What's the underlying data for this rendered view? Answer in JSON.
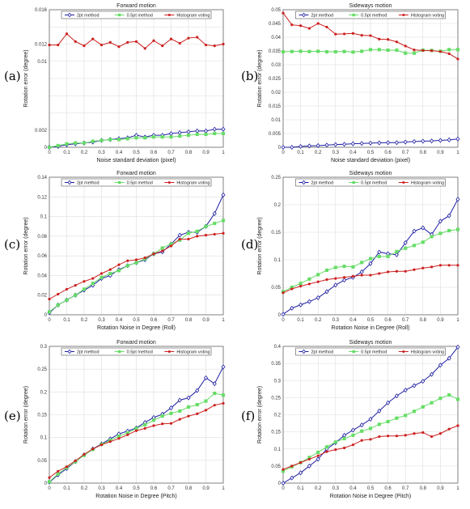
{
  "colors": {
    "s2pt": "#1f1fa3",
    "s05pt": "#66dd66",
    "hist": "#cc2020",
    "grid": "#dddddd"
  },
  "chart_data": [
    {
      "panel_label": "(a)",
      "type": "line",
      "title": "Forward motion",
      "xlabel": "Noise standard deviation (pixel)",
      "ylabel": "Rotation error (degree)",
      "xlim": [
        0,
        1
      ],
      "ylim": [
        0,
        0.016
      ],
      "xticks": [
        "0",
        "0.1",
        "0.2",
        "0.3",
        "0.4",
        "0.5",
        "0.6",
        "0.7",
        "0.8",
        "0.9",
        "1"
      ],
      "yticks": [
        "0",
        "0.002",
        "0.004",
        "0.006",
        "0.008",
        "0.01",
        "0.012",
        "0.014",
        "0.016"
      ],
      "yticks_shown": [
        "0",
        "0.002",
        "",
        "",
        "",
        "0.01",
        "0.012",
        "",
        "0.016"
      ],
      "x": [
        0,
        0.05,
        0.1,
        0.15,
        0.2,
        0.25,
        0.3,
        0.35,
        0.4,
        0.45,
        0.5,
        0.55,
        0.6,
        0.65,
        0.7,
        0.75,
        0.8,
        0.85,
        0.9,
        0.95,
        1
      ],
      "series": [
        {
          "name": "2pt method",
          "key": "s2pt",
          "marker": "diamond",
          "values": [
            0,
            0.0001,
            0.0003,
            0.0004,
            0.0005,
            0.0006,
            0.0008,
            0.0009,
            0.001,
            0.0011,
            0.0014,
            0.0012,
            0.0014,
            0.0014,
            0.0016,
            0.0017,
            0.0018,
            0.0019,
            0.0019,
            0.0021,
            0.0021
          ]
        },
        {
          "name": "0.5pt method",
          "key": "s05pt",
          "marker": "square",
          "values": [
            0,
            0.0002,
            0.0004,
            0.0005,
            0.0005,
            0.0007,
            0.0008,
            0.0009,
            0.0009,
            0.001,
            0.0011,
            0.0011,
            0.0012,
            0.0012,
            0.0012,
            0.0013,
            0.0014,
            0.0015,
            0.0015,
            0.0016,
            0.0016
          ]
        },
        {
          "name": "Histogram voting",
          "key": "hist",
          "marker": "dot",
          "values": [
            0.0119,
            0.0119,
            0.0132,
            0.0123,
            0.0118,
            0.0126,
            0.0119,
            0.0122,
            0.0117,
            0.0122,
            0.0123,
            0.0115,
            0.0124,
            0.0118,
            0.0126,
            0.0121,
            0.0127,
            0.0128,
            0.0119,
            0.0118,
            0.012
          ]
        }
      ]
    },
    {
      "panel_label": "(b)",
      "type": "line",
      "title": "Sideways motion",
      "xlabel": "Noise standard deviation (pixel)",
      "ylabel": "Rotation error (degree)",
      "xlim": [
        0,
        1
      ],
      "ylim": [
        0,
        0.05
      ],
      "xticks": [
        "0",
        "0.1",
        "0.2",
        "0.3",
        "0.4",
        "0.5",
        "0.6",
        "0.7",
        "0.8",
        "0.9",
        "1"
      ],
      "yticks": [
        "0",
        "0.005",
        "0.01",
        "0.015",
        "0.02",
        "0.025",
        "0.03",
        "0.035",
        "0.04",
        "0.045",
        "0.05"
      ],
      "yticks_shown": [
        "0",
        "0.005",
        "0.01",
        "0.015",
        "0.02",
        "0.025",
        "0.03",
        "0.035",
        "0.04",
        "0.045",
        "0.05"
      ],
      "x": [
        0,
        0.05,
        0.1,
        0.15,
        0.2,
        0.25,
        0.3,
        0.35,
        0.4,
        0.45,
        0.5,
        0.55,
        0.6,
        0.65,
        0.7,
        0.75,
        0.8,
        0.85,
        0.9,
        0.95,
        1
      ],
      "series": [
        {
          "name": "2pt method",
          "key": "s2pt",
          "marker": "diamond",
          "values": [
            0,
            0,
            0.0003,
            0.0005,
            0.0006,
            0.0008,
            0.001,
            0.0011,
            0.0013,
            0.0014,
            0.0015,
            0.0016,
            0.0017,
            0.0017,
            0.0019,
            0.0021,
            0.0022,
            0.0023,
            0.0025,
            0.0027,
            0.003
          ]
        },
        {
          "name": "0.5pt method",
          "key": "s05pt",
          "marker": "square",
          "values": [
            0.0347,
            0.0348,
            0.0349,
            0.0348,
            0.0349,
            0.0347,
            0.0347,
            0.0348,
            0.0346,
            0.0349,
            0.0355,
            0.0355,
            0.0353,
            0.0353,
            0.0342,
            0.0342,
            0.0353,
            0.0352,
            0.0349,
            0.0355,
            0.0355
          ]
        },
        {
          "name": "Histogram voting",
          "key": "hist",
          "marker": "dot",
          "values": [
            0.0488,
            0.0445,
            0.0442,
            0.0432,
            0.045,
            0.0437,
            0.0411,
            0.0412,
            0.0414,
            0.0407,
            0.0406,
            0.0393,
            0.0392,
            0.0383,
            0.0368,
            0.0354,
            0.0352,
            0.0351,
            0.0348,
            0.034,
            0.0321
          ]
        }
      ]
    },
    {
      "panel_label": "(c)",
      "type": "line",
      "title": "Forward motion",
      "xlabel": "Rotation Noise in Degree (Roll)",
      "ylabel": "Rotation error (degree)",
      "xlim": [
        0,
        1
      ],
      "ylim": [
        0,
        0.14
      ],
      "xticks": [
        "0",
        "0.1",
        "0.2",
        "0.3",
        "0.4",
        "0.5",
        "0.6",
        "0.7",
        "0.8",
        "0.9",
        "1"
      ],
      "yticks": [
        "0",
        "0.02",
        "0.04",
        "0.06",
        "0.08",
        "0.1",
        "0.12",
        "0.14"
      ],
      "yticks_shown": [
        "0",
        "0.02",
        "0.04",
        "0.06",
        "0.08",
        "0.1",
        "0.12",
        "0.14"
      ],
      "x": [
        0,
        0.05,
        0.1,
        0.15,
        0.2,
        0.25,
        0.3,
        0.35,
        0.4,
        0.45,
        0.5,
        0.55,
        0.6,
        0.65,
        0.7,
        0.75,
        0.8,
        0.85,
        0.9,
        0.95,
        1
      ],
      "series": [
        {
          "name": "2pt method",
          "key": "s2pt",
          "marker": "diamond",
          "values": [
            0.002,
            0.01,
            0.015,
            0.02,
            0.025,
            0.03,
            0.037,
            0.04,
            0.046,
            0.05,
            0.053,
            0.056,
            0.062,
            0.064,
            0.072,
            0.081,
            0.084,
            0.084,
            0.09,
            0.103,
            0.122
          ]
        },
        {
          "name": "0.5pt method",
          "key": "s05pt",
          "marker": "square",
          "values": [
            0.003,
            0.01,
            0.015,
            0.02,
            0.026,
            0.032,
            0.038,
            0.042,
            0.045,
            0.05,
            0.053,
            0.057,
            0.062,
            0.068,
            0.072,
            0.076,
            0.083,
            0.085,
            0.09,
            0.093,
            0.096
          ]
        },
        {
          "name": "Histogram voting",
          "key": "hist",
          "marker": "dot",
          "values": [
            0.016,
            0.021,
            0.026,
            0.03,
            0.034,
            0.037,
            0.042,
            0.046,
            0.051,
            0.055,
            0.056,
            0.058,
            0.062,
            0.065,
            0.07,
            0.077,
            0.077,
            0.08,
            0.081,
            0.082,
            0.083
          ]
        }
      ]
    },
    {
      "panel_label": "(d)",
      "type": "line",
      "title": "Sideways motion",
      "xlabel": "Rotation Noise in Degree (Roll)",
      "ylabel": "Rotation error (degree)",
      "xlim": [
        0,
        1
      ],
      "ylim": [
        0,
        0.25
      ],
      "xticks": [
        "0",
        "0.1",
        "0.2",
        "0.3",
        "0.4",
        "0.5",
        "0.6",
        "0.7",
        "0.8",
        "0.9",
        "1"
      ],
      "yticks": [
        "0",
        "0.05",
        "0.1",
        "0.15",
        "0.2",
        "0.25"
      ],
      "yticks_shown": [
        "0",
        "0.05",
        "0.1",
        "0.15",
        "0.2",
        "0.25"
      ],
      "x": [
        0,
        0.05,
        0.1,
        0.15,
        0.2,
        0.25,
        0.3,
        0.35,
        0.4,
        0.45,
        0.5,
        0.55,
        0.6,
        0.65,
        0.7,
        0.75,
        0.8,
        0.85,
        0.9,
        0.95,
        1
      ],
      "series": [
        {
          "name": "2pt method",
          "key": "s2pt",
          "marker": "diamond",
          "values": [
            0.001,
            0.012,
            0.018,
            0.024,
            0.031,
            0.042,
            0.054,
            0.063,
            0.068,
            0.078,
            0.093,
            0.114,
            0.111,
            0.109,
            0.131,
            0.152,
            0.158,
            0.146,
            0.17,
            0.18,
            0.21
          ]
        },
        {
          "name": "0.5pt method",
          "key": "s05pt",
          "marker": "square",
          "values": [
            0.042,
            0.05,
            0.057,
            0.065,
            0.073,
            0.081,
            0.086,
            0.088,
            0.087,
            0.095,
            0.102,
            0.106,
            0.106,
            0.115,
            0.121,
            0.126,
            0.132,
            0.142,
            0.148,
            0.153,
            0.155
          ]
        },
        {
          "name": "Histogram voting",
          "key": "hist",
          "marker": "dot",
          "values": [
            0.04,
            0.047,
            0.052,
            0.056,
            0.06,
            0.064,
            0.066,
            0.068,
            0.07,
            0.072,
            0.072,
            0.075,
            0.078,
            0.079,
            0.079,
            0.082,
            0.085,
            0.087,
            0.09,
            0.09,
            0.09
          ]
        }
      ]
    },
    {
      "panel_label": "(e)",
      "type": "line",
      "title": "Forward motion",
      "xlabel": "Rotation Noise in Degree (Pitch)",
      "ylabel": "Rotation error (degree)",
      "xlim": [
        0,
        1
      ],
      "ylim": [
        0,
        0.3
      ],
      "xticks": [
        "0",
        "0.1",
        "0.2",
        "0.3",
        "0.4",
        "0.5",
        "0.6",
        "0.7",
        "0.8",
        "0.9",
        "1"
      ],
      "yticks": [
        "0",
        "0.05",
        "0.1",
        "0.15",
        "0.2",
        "0.25",
        "0.3"
      ],
      "yticks_shown": [
        "0",
        "0.05",
        "0.1",
        "0.15",
        "0.2",
        "0.25",
        "0.3"
      ],
      "x": [
        0,
        0.05,
        0.1,
        0.15,
        0.2,
        0.25,
        0.3,
        0.35,
        0.4,
        0.45,
        0.5,
        0.55,
        0.6,
        0.65,
        0.7,
        0.75,
        0.8,
        0.85,
        0.9,
        0.95,
        1
      ],
      "series": [
        {
          "name": "2pt method",
          "key": "s2pt",
          "marker": "diamond",
          "values": [
            0.002,
            0.018,
            0.032,
            0.047,
            0.062,
            0.075,
            0.086,
            0.097,
            0.108,
            0.114,
            0.121,
            0.133,
            0.144,
            0.151,
            0.165,
            0.182,
            0.187,
            0.203,
            0.231,
            0.218,
            0.255
          ]
        },
        {
          "name": "0.5pt method",
          "key": "s05pt",
          "marker": "square",
          "values": [
            0.003,
            0.02,
            0.034,
            0.047,
            0.061,
            0.074,
            0.085,
            0.094,
            0.103,
            0.11,
            0.12,
            0.128,
            0.138,
            0.147,
            0.153,
            0.158,
            0.167,
            0.172,
            0.18,
            0.197,
            0.193
          ]
        },
        {
          "name": "Histogram voting",
          "key": "hist",
          "marker": "dot",
          "values": [
            0.012,
            0.026,
            0.036,
            0.049,
            0.063,
            0.075,
            0.084,
            0.091,
            0.098,
            0.106,
            0.115,
            0.12,
            0.126,
            0.13,
            0.131,
            0.14,
            0.147,
            0.152,
            0.16,
            0.171,
            0.175
          ]
        }
      ]
    },
    {
      "panel_label": "(f)",
      "type": "line",
      "title": "Sideways motion",
      "xlabel": "Rotation Noise in Degree (Pitch)",
      "ylabel": "Rotation error (degree)",
      "xlim": [
        0,
        1
      ],
      "ylim": [
        0,
        0.4
      ],
      "xticks": [
        "0",
        "0.1",
        "0.2",
        "0.3",
        "0.4",
        "0.5",
        "0.6",
        "0.7",
        "0.8",
        "0.9",
        "1"
      ],
      "yticks": [
        "0",
        "0.05",
        "0.1",
        "0.15",
        "0.2",
        "0.25",
        "0.3",
        "0.35",
        "0.4"
      ],
      "yticks_shown": [
        "0",
        "0.05",
        "0.1",
        "0.15",
        "0.2",
        "0.25",
        "0.3",
        "0.35",
        "0.4"
      ],
      "x": [
        0,
        0.05,
        0.1,
        0.15,
        0.2,
        0.25,
        0.3,
        0.35,
        0.4,
        0.45,
        0.5,
        0.55,
        0.6,
        0.65,
        0.7,
        0.75,
        0.8,
        0.85,
        0.9,
        0.95,
        1
      ],
      "series": [
        {
          "name": "2pt method",
          "key": "s2pt",
          "marker": "diamond",
          "values": [
            0,
            0.015,
            0.03,
            0.05,
            0.07,
            0.1,
            0.118,
            0.14,
            0.155,
            0.17,
            0.187,
            0.211,
            0.235,
            0.255,
            0.272,
            0.285,
            0.298,
            0.318,
            0.345,
            0.365,
            0.398
          ]
        },
        {
          "name": "0.5pt method",
          "key": "s05pt",
          "marker": "square",
          "values": [
            0.035,
            0.048,
            0.06,
            0.075,
            0.09,
            0.106,
            0.12,
            0.13,
            0.14,
            0.152,
            0.16,
            0.172,
            0.18,
            0.19,
            0.198,
            0.21,
            0.223,
            0.235,
            0.248,
            0.258,
            0.245
          ]
        },
        {
          "name": "Histogram voting",
          "key": "hist",
          "marker": "dot",
          "values": [
            0.04,
            0.05,
            0.06,
            0.07,
            0.08,
            0.092,
            0.098,
            0.103,
            0.112,
            0.125,
            0.128,
            0.136,
            0.138,
            0.138,
            0.14,
            0.145,
            0.148,
            0.136,
            0.145,
            0.158,
            0.168
          ]
        }
      ]
    }
  ]
}
